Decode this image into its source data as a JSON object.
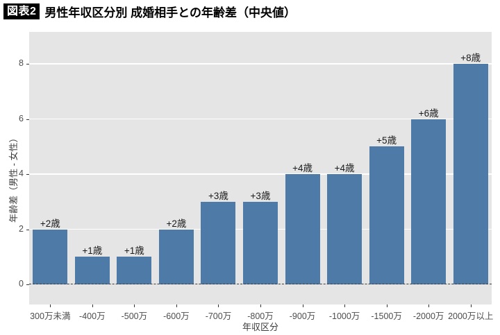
{
  "header": {
    "badge": "図表2",
    "title": "男性年収区分別 成婚相手との年齢差（中央値）"
  },
  "chart_data": {
    "type": "bar",
    "title": "男性年収区分別 成婚相手との年齢差（中央値）",
    "categories": [
      "300万未満",
      "-400万",
      "-500万",
      "-600万",
      "-700万",
      "-800万",
      "-900万",
      "-1000万",
      "-1500万",
      "-2000万",
      "2000万以上"
    ],
    "values": [
      2,
      1,
      1,
      2,
      3,
      3,
      4,
      4,
      5,
      6,
      8
    ],
    "bar_labels": [
      "+2歳",
      "+1歳",
      "+1歳",
      "+2歳",
      "+3歳",
      "+3歳",
      "+4歳",
      "+4歳",
      "+5歳",
      "+6歳",
      "+8歳"
    ],
    "xlabel": "年収区分",
    "ylabel": "年齢差（男性 - 女性）",
    "yticks": [
      0,
      2,
      4,
      6,
      8
    ],
    "ylim": [
      -0.73,
      9.16
    ],
    "grid": "horizontal-major",
    "legend_position": "none",
    "zero_line_style": "dashed",
    "colors": {
      "bar": "#4d7aa6",
      "plot_background": "#e5e5e5",
      "gridline": "#ffffff",
      "zero_line": "#3c3c3c",
      "tick_text": "#4d4d4d",
      "axis_title_text": "#3c3c3c",
      "bar_label_text": "#1a1a1a",
      "badge_background": "#000000",
      "badge_text": "#ffffff"
    }
  }
}
